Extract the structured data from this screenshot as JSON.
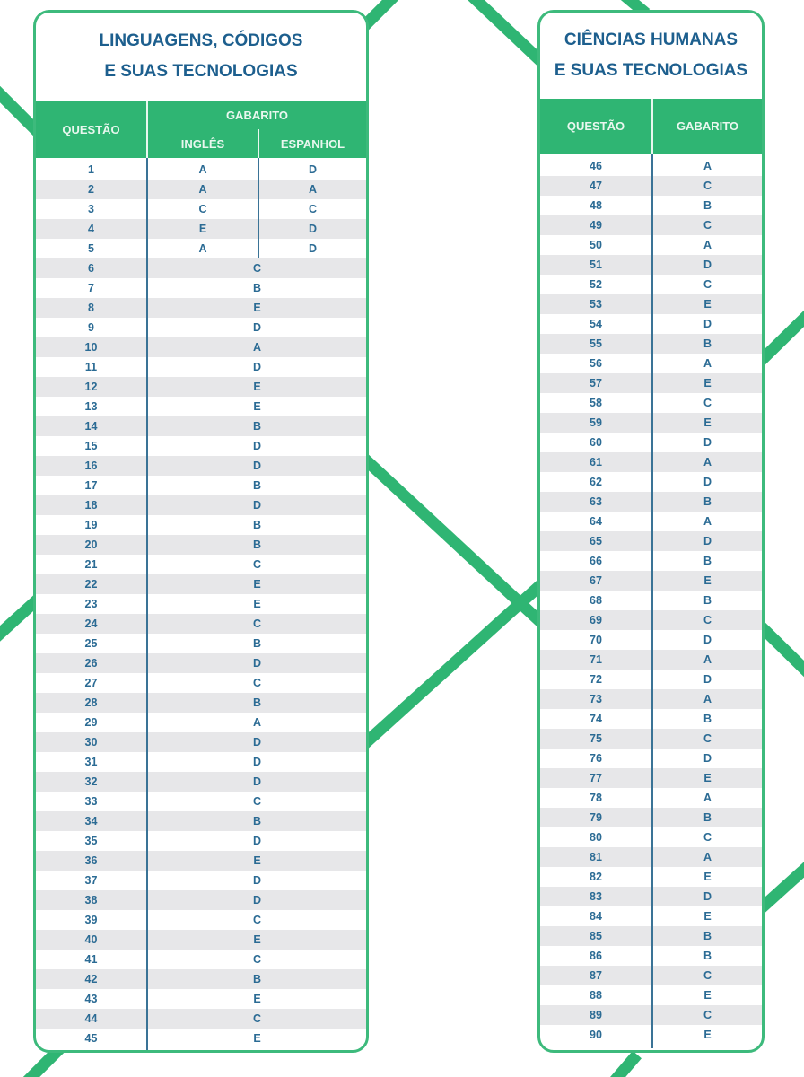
{
  "colors": {
    "accent": "#2fb573",
    "title": "#1d5f8e",
    "text": "#2b6b94",
    "stripe": "#e7e7e9"
  },
  "left": {
    "title_line1": "LINGUAGENS, CÓDIGOS",
    "title_line2": "E SUAS TECNOLOGIAS",
    "header": {
      "questao": "QUESTÃO",
      "gabarito": "GABARITO",
      "ingles": "INGLÊS",
      "espanhol": "ESPANHOL"
    },
    "language_rows": [
      {
        "q": "1",
        "ingles": "A",
        "espanhol": "D"
      },
      {
        "q": "2",
        "ingles": "A",
        "espanhol": "A"
      },
      {
        "q": "3",
        "ingles": "C",
        "espanhol": "C"
      },
      {
        "q": "4",
        "ingles": "E",
        "espanhol": "D"
      },
      {
        "q": "5",
        "ingles": "A",
        "espanhol": "D"
      }
    ],
    "rows": [
      {
        "q": "6",
        "a": "C"
      },
      {
        "q": "7",
        "a": "B"
      },
      {
        "q": "8",
        "a": "E"
      },
      {
        "q": "9",
        "a": "D"
      },
      {
        "q": "10",
        "a": "A"
      },
      {
        "q": "11",
        "a": "D"
      },
      {
        "q": "12",
        "a": "E"
      },
      {
        "q": "13",
        "a": "E"
      },
      {
        "q": "14",
        "a": "B"
      },
      {
        "q": "15",
        "a": "D"
      },
      {
        "q": "16",
        "a": "D"
      },
      {
        "q": "17",
        "a": "B"
      },
      {
        "q": "18",
        "a": "D"
      },
      {
        "q": "19",
        "a": "B"
      },
      {
        "q": "20",
        "a": "B"
      },
      {
        "q": "21",
        "a": "C"
      },
      {
        "q": "22",
        "a": "E"
      },
      {
        "q": "23",
        "a": "E"
      },
      {
        "q": "24",
        "a": "C"
      },
      {
        "q": "25",
        "a": "B"
      },
      {
        "q": "26",
        "a": "D"
      },
      {
        "q": "27",
        "a": "C"
      },
      {
        "q": "28",
        "a": "B"
      },
      {
        "q": "29",
        "a": "A"
      },
      {
        "q": "30",
        "a": "D"
      },
      {
        "q": "31",
        "a": "D"
      },
      {
        "q": "32",
        "a": "D"
      },
      {
        "q": "33",
        "a": "C"
      },
      {
        "q": "34",
        "a": "B"
      },
      {
        "q": "35",
        "a": "D"
      },
      {
        "q": "36",
        "a": "E"
      },
      {
        "q": "37",
        "a": "D"
      },
      {
        "q": "38",
        "a": "D"
      },
      {
        "q": "39",
        "a": "C"
      },
      {
        "q": "40",
        "a": "E"
      },
      {
        "q": "41",
        "a": "C"
      },
      {
        "q": "42",
        "a": "B"
      },
      {
        "q": "43",
        "a": "E"
      },
      {
        "q": "44",
        "a": "C"
      },
      {
        "q": "45",
        "a": "E"
      }
    ]
  },
  "right": {
    "title_line1": "CIÊNCIAS HUMANAS",
    "title_line2": "E SUAS TECNOLOGIAS",
    "header": {
      "questao": "QUESTÃO",
      "gabarito": "GABARITO"
    },
    "rows": [
      {
        "q": "46",
        "a": "A"
      },
      {
        "q": "47",
        "a": "C"
      },
      {
        "q": "48",
        "a": "B"
      },
      {
        "q": "49",
        "a": "C"
      },
      {
        "q": "50",
        "a": "A"
      },
      {
        "q": "51",
        "a": "D"
      },
      {
        "q": "52",
        "a": "C"
      },
      {
        "q": "53",
        "a": "E"
      },
      {
        "q": "54",
        "a": "D"
      },
      {
        "q": "55",
        "a": "B"
      },
      {
        "q": "56",
        "a": "A"
      },
      {
        "q": "57",
        "a": "E"
      },
      {
        "q": "58",
        "a": "C"
      },
      {
        "q": "59",
        "a": "E"
      },
      {
        "q": "60",
        "a": "D"
      },
      {
        "q": "61",
        "a": "A"
      },
      {
        "q": "62",
        "a": "D"
      },
      {
        "q": "63",
        "a": "B"
      },
      {
        "q": "64",
        "a": "A"
      },
      {
        "q": "65",
        "a": "D"
      },
      {
        "q": "66",
        "a": "B"
      },
      {
        "q": "67",
        "a": "E"
      },
      {
        "q": "68",
        "a": "B"
      },
      {
        "q": "69",
        "a": "C"
      },
      {
        "q": "70",
        "a": "D"
      },
      {
        "q": "71",
        "a": "A"
      },
      {
        "q": "72",
        "a": "D"
      },
      {
        "q": "73",
        "a": "A"
      },
      {
        "q": "74",
        "a": "B"
      },
      {
        "q": "75",
        "a": "C"
      },
      {
        "q": "76",
        "a": "D"
      },
      {
        "q": "77",
        "a": "E"
      },
      {
        "q": "78",
        "a": "A"
      },
      {
        "q": "79",
        "a": "B"
      },
      {
        "q": "80",
        "a": "C"
      },
      {
        "q": "81",
        "a": "A"
      },
      {
        "q": "82",
        "a": "E"
      },
      {
        "q": "83",
        "a": "D"
      },
      {
        "q": "84",
        "a": "E"
      },
      {
        "q": "85",
        "a": "B"
      },
      {
        "q": "86",
        "a": "B"
      },
      {
        "q": "87",
        "a": "C"
      },
      {
        "q": "88",
        "a": "E"
      },
      {
        "q": "89",
        "a": "C"
      },
      {
        "q": "90",
        "a": "E"
      }
    ]
  }
}
